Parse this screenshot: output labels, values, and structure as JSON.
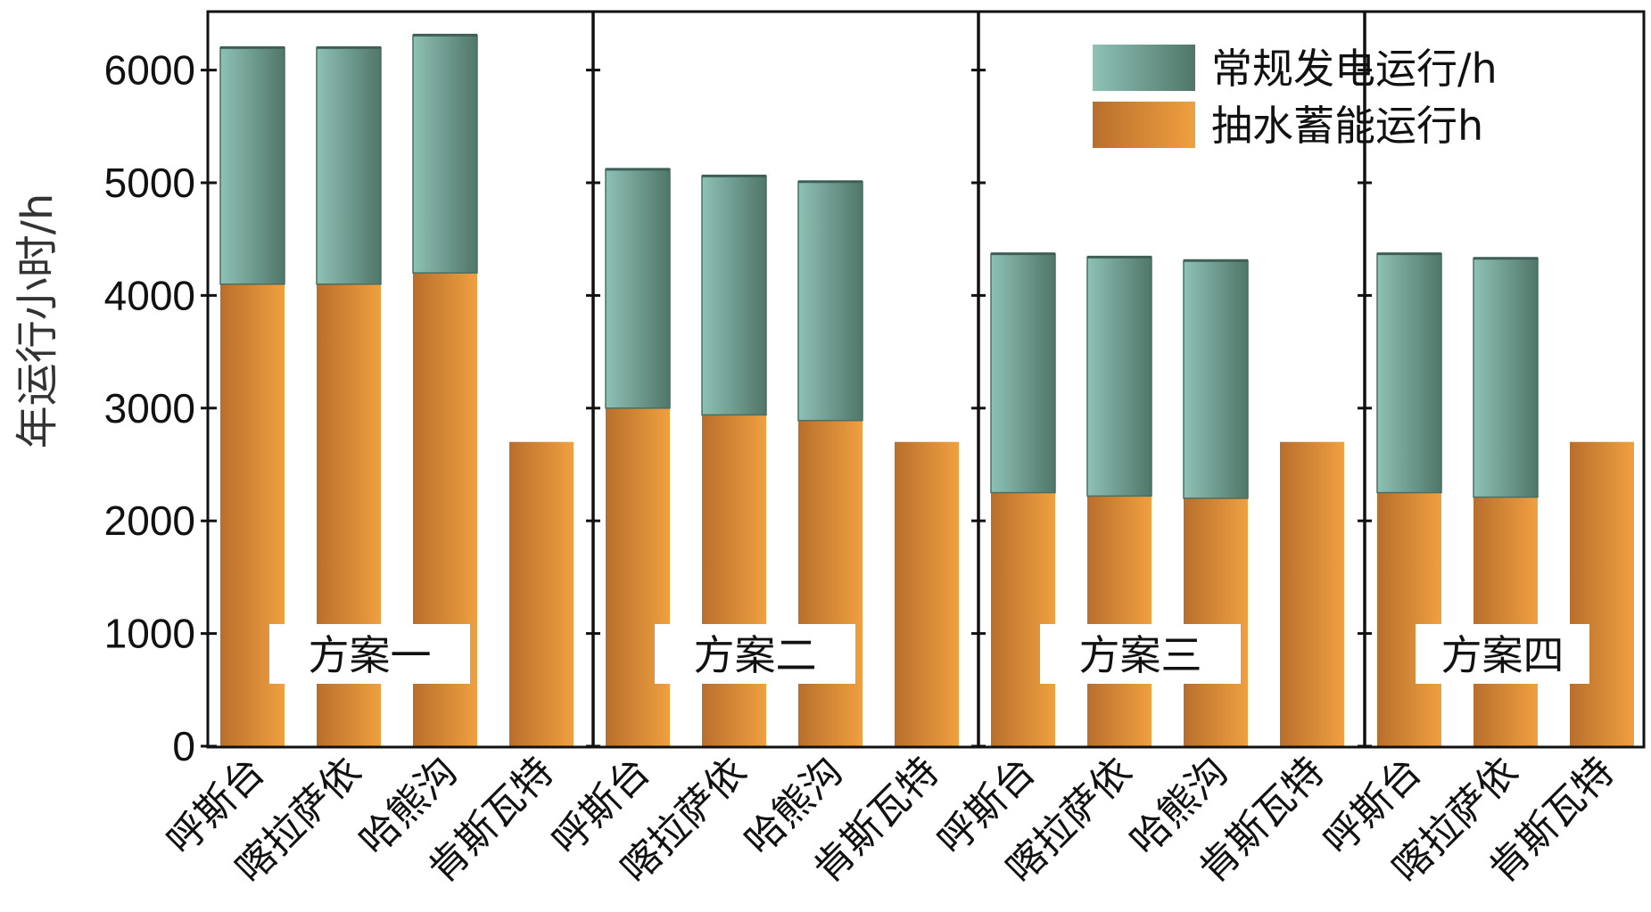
{
  "chart_data": {
    "type": "bar",
    "stacked": true,
    "ylabel": "年运行小时/h",
    "ylim": [
      0,
      6500
    ],
    "yticks": [
      0,
      1000,
      2000,
      3000,
      4000,
      5000,
      6000
    ],
    "legend_position": "top-right",
    "groups": [
      {
        "label": "方案一",
        "categories": [
          "呼斯台",
          "喀拉萨依",
          "哈熊沟",
          "肯斯瓦特"
        ],
        "pumped_storage": [
          4100,
          4100,
          4200,
          2700
        ],
        "conventional": [
          2100,
          2100,
          2110,
          0
        ]
      },
      {
        "label": "方案二",
        "categories": [
          "呼斯台",
          "喀拉萨依",
          "哈熊沟",
          "肯斯瓦特"
        ],
        "pumped_storage": [
          3000,
          2940,
          2890,
          2700
        ],
        "conventional": [
          2120,
          2120,
          2120,
          0
        ]
      },
      {
        "label": "方案三",
        "categories": [
          "呼斯台",
          "喀拉萨依",
          "哈熊沟",
          "肯斯瓦特"
        ],
        "pumped_storage": [
          2250,
          2220,
          2200,
          2700
        ],
        "conventional": [
          2120,
          2120,
          2110,
          0
        ]
      },
      {
        "label": "方案四",
        "categories": [
          "呼斯台",
          "喀拉萨依",
          "肯斯瓦特"
        ],
        "pumped_storage": [
          2250,
          2210,
          2700
        ],
        "conventional": [
          2120,
          2120,
          0
        ]
      }
    ],
    "series": [
      {
        "name": "常规发电运行/h",
        "color_light": "#8fc1b5",
        "color_dark": "#4f7669"
      },
      {
        "name": "抽水蓄能运行h",
        "color_light": "#f0a040",
        "color_dark": "#b86f2c"
      }
    ]
  }
}
